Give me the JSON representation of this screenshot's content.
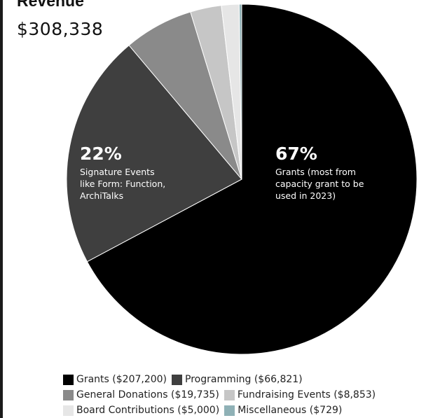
{
  "header": {
    "title": "Revenue",
    "total": "$308,338"
  },
  "chart_data": {
    "type": "pie",
    "start_angle_deg": 0,
    "direction": "clockwise",
    "slices": [
      {
        "label": "Grants",
        "value": 207200,
        "amount_text": "$207,200",
        "color": "#000000"
      },
      {
        "label": "Programming",
        "value": 66821,
        "amount_text": "$66,821",
        "color": "#3f3f3f"
      },
      {
        "label": "General Donations",
        "value": 19735,
        "amount_text": "$19,735",
        "color": "#8a8a8a"
      },
      {
        "label": "Fundraising Events",
        "value": 8853,
        "amount_text": "$8,853",
        "color": "#c6c6c6"
      },
      {
        "label": "Board Contributions",
        "value": 5000,
        "amount_text": "$5,000",
        "color": "#e6e6e6"
      },
      {
        "label": "Miscellaneous",
        "value": 729,
        "amount_text": "$729",
        "color": "#8fb1b6"
      }
    ],
    "annotations": [
      {
        "slice": "Grants",
        "percent": "67%",
        "lines": [
          "Grants (most from",
          "capacity grant to be",
          "used in 2023)"
        ]
      },
      {
        "slice": "Programming",
        "percent": "22%",
        "lines": [
          "Signature Events",
          "like Form: Function,",
          "ArchiTalks"
        ]
      }
    ]
  },
  "legend": {
    "rows": [
      [
        {
          "text": "Grants ($207,200)",
          "color": "#000000"
        },
        {
          "text": "Programming ($66,821)",
          "color": "#3f3f3f"
        }
      ],
      [
        {
          "text": "General Donations ($19,735)",
          "color": "#8a8a8a"
        },
        {
          "text": "Fundraising Events ($8,853)",
          "color": "#c6c6c6"
        }
      ],
      [
        {
          "text": "Board Contributions ($5,000)",
          "color": "#e6e6e6"
        },
        {
          "text": "Miscellaneous ($729)",
          "color": "#8fb1b6"
        }
      ]
    ]
  }
}
